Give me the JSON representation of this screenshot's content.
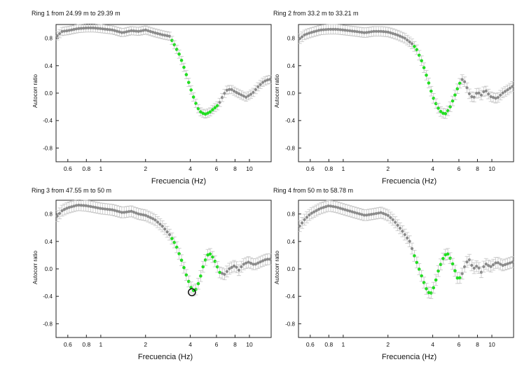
{
  "colors": {
    "highlight": "#22dd22",
    "gray_points": "#8a8a8a",
    "error_bars": "#c4c4c4",
    "frame": "#222222",
    "marker_ring": "#111111"
  },
  "chart_data": [
    {
      "type": "scatter",
      "title": "Ring 1 from 24.99 m to 29.39 m",
      "xlabel": "Frecuencia (Hz)",
      "ylabel": "Autocorr ratio",
      "xscale": "log",
      "xlim": [
        0.5,
        14
      ],
      "ylim": [
        -1.0,
        1.0
      ],
      "xtick_labels": [
        "0.6",
        "0.8",
        "1",
        "2",
        "4",
        "6",
        "8",
        "10"
      ],
      "xtick_values": [
        0.6,
        0.8,
        1,
        2,
        4,
        6,
        8,
        10
      ],
      "ytick_labels": [
        "0.8",
        "0.4",
        "0.0",
        "-0.4",
        "-0.8"
      ],
      "ytick_values": [
        0.8,
        0.4,
        0.0,
        -0.4,
        -0.8
      ],
      "grid": false,
      "highlight_range": [
        3.0,
        6.3
      ],
      "curve_points": [
        [
          0.5,
          0.82
        ],
        [
          0.55,
          0.9
        ],
        [
          0.6,
          0.91
        ],
        [
          0.7,
          0.94
        ],
        [
          0.8,
          0.95
        ],
        [
          0.9,
          0.95
        ],
        [
          1.0,
          0.94
        ],
        [
          1.2,
          0.92
        ],
        [
          1.4,
          0.88
        ],
        [
          1.6,
          0.91
        ],
        [
          1.8,
          0.9
        ],
        [
          2.0,
          0.92
        ],
        [
          2.3,
          0.88
        ],
        [
          2.6,
          0.85
        ],
        [
          2.9,
          0.83
        ],
        [
          3.1,
          0.72
        ],
        [
          3.4,
          0.55
        ],
        [
          3.7,
          0.32
        ],
        [
          4.0,
          0.08
        ],
        [
          4.3,
          -0.12
        ],
        [
          4.6,
          -0.26
        ],
        [
          5.0,
          -0.31
        ],
        [
          5.4,
          -0.28
        ],
        [
          5.8,
          -0.22
        ],
        [
          6.2,
          -0.17
        ],
        [
          6.6,
          -0.05
        ],
        [
          7.0,
          0.04
        ],
        [
          7.5,
          0.06
        ],
        [
          8.0,
          0.02
        ],
        [
          8.7,
          -0.02
        ],
        [
          9.5,
          -0.06
        ],
        [
          10.5,
          0.0
        ],
        [
          11.5,
          0.1
        ],
        [
          12.5,
          0.17
        ],
        [
          13.5,
          0.2
        ]
      ],
      "error": 0.06,
      "marker_circle": null
    },
    {
      "type": "scatter",
      "title": "Ring 2 from 33.2 m to 33.21 m",
      "xlabel": "Frecuencia (Hz)",
      "ylabel": "Autocorr ratio",
      "xscale": "log",
      "xlim": [
        0.5,
        14
      ],
      "ylim": [
        -1.0,
        1.0
      ],
      "xtick_labels": [
        "0.6",
        "0.8",
        "1",
        "2",
        "4",
        "6",
        "8",
        "10"
      ],
      "xtick_values": [
        0.6,
        0.8,
        1,
        2,
        4,
        6,
        8,
        10
      ],
      "ytick_labels": [
        "0.8",
        "0.4",
        "0.0",
        "-0.4",
        "-0.8"
      ],
      "ytick_values": [
        0.8,
        0.4,
        0.0,
        -0.4,
        -0.8
      ],
      "grid": false,
      "highlight_range": [
        3.0,
        6.2
      ],
      "curve_points": [
        [
          0.5,
          0.78
        ],
        [
          0.55,
          0.85
        ],
        [
          0.6,
          0.88
        ],
        [
          0.7,
          0.92
        ],
        [
          0.8,
          0.93
        ],
        [
          0.9,
          0.93
        ],
        [
          1.0,
          0.92
        ],
        [
          1.2,
          0.9
        ],
        [
          1.4,
          0.88
        ],
        [
          1.6,
          0.9
        ],
        [
          1.8,
          0.9
        ],
        [
          2.0,
          0.89
        ],
        [
          2.3,
          0.85
        ],
        [
          2.6,
          0.8
        ],
        [
          2.9,
          0.72
        ],
        [
          3.1,
          0.65
        ],
        [
          3.4,
          0.45
        ],
        [
          3.7,
          0.2
        ],
        [
          4.0,
          -0.05
        ],
        [
          4.3,
          -0.2
        ],
        [
          4.6,
          -0.29
        ],
        [
          4.9,
          -0.3
        ],
        [
          5.2,
          -0.22
        ],
        [
          5.6,
          -0.05
        ],
        [
          6.0,
          0.12
        ],
        [
          6.3,
          0.2
        ],
        [
          6.6,
          0.16
        ],
        [
          7.0,
          0.0
        ],
        [
          7.5,
          -0.08
        ],
        [
          8.0,
          0.02
        ],
        [
          8.5,
          -0.03
        ],
        [
          9.0,
          0.05
        ],
        [
          9.8,
          -0.05
        ],
        [
          10.8,
          -0.08
        ],
        [
          11.8,
          0.0
        ],
        [
          13.0,
          0.06
        ],
        [
          13.8,
          0.1
        ]
      ],
      "error": 0.07,
      "marker_circle": null
    },
    {
      "type": "scatter",
      "title": "Ring 3 from 47.55 m to 50 m",
      "xlabel": "Frecuencia (Hz)",
      "ylabel": "Autocorr ratio",
      "xscale": "log",
      "xlim": [
        0.5,
        14
      ],
      "ylim": [
        -1.0,
        1.0
      ],
      "xtick_labels": [
        "0.6",
        "0.8",
        "1",
        "2",
        "4",
        "6",
        "8",
        "10"
      ],
      "xtick_values": [
        0.6,
        0.8,
        1,
        2,
        4,
        6,
        8,
        10
      ],
      "ytick_labels": [
        "0.8",
        "0.4",
        "0.0",
        "-0.4",
        "-0.8"
      ],
      "ytick_values": [
        0.8,
        0.4,
        0.0,
        -0.4,
        -0.8
      ],
      "grid": false,
      "highlight_range": [
        3.0,
        6.5
      ],
      "curve_points": [
        [
          0.5,
          0.75
        ],
        [
          0.55,
          0.85
        ],
        [
          0.6,
          0.89
        ],
        [
          0.7,
          0.93
        ],
        [
          0.8,
          0.92
        ],
        [
          0.9,
          0.9
        ],
        [
          1.0,
          0.88
        ],
        [
          1.2,
          0.86
        ],
        [
          1.4,
          0.82
        ],
        [
          1.6,
          0.84
        ],
        [
          1.8,
          0.8
        ],
        [
          2.0,
          0.78
        ],
        [
          2.3,
          0.72
        ],
        [
          2.6,
          0.62
        ],
        [
          2.9,
          0.5
        ],
        [
          3.2,
          0.35
        ],
        [
          3.5,
          0.12
        ],
        [
          3.8,
          -0.12
        ],
        [
          4.1,
          -0.3
        ],
        [
          4.3,
          -0.33
        ],
        [
          4.6,
          -0.18
        ],
        [
          4.9,
          0.05
        ],
        [
          5.2,
          0.2
        ],
        [
          5.5,
          0.22
        ],
        [
          5.9,
          0.1
        ],
        [
          6.3,
          -0.05
        ],
        [
          6.8,
          -0.08
        ],
        [
          7.3,
          0.0
        ],
        [
          8.0,
          0.05
        ],
        [
          8.5,
          -0.02
        ],
        [
          9.0,
          0.06
        ],
        [
          9.8,
          0.1
        ],
        [
          10.8,
          0.06
        ],
        [
          11.8,
          0.1
        ],
        [
          13.0,
          0.14
        ],
        [
          13.8,
          0.14
        ]
      ],
      "error": 0.08,
      "marker_circle": {
        "x": 4.1,
        "y": -0.34
      }
    },
    {
      "type": "scatter",
      "title": "Ring 4 from 50 m to 58.78 m",
      "xlabel": "Frecuencia (Hz)",
      "ylabel": "Autocorr ratio",
      "xscale": "log",
      "xlim": [
        0.5,
        14
      ],
      "ylim": [
        -1.0,
        1.0
      ],
      "xtick_labels": [
        "0.6",
        "0.8",
        "1",
        "2",
        "4",
        "6",
        "8",
        "10"
      ],
      "xtick_values": [
        0.6,
        0.8,
        1,
        2,
        4,
        6,
        8,
        10
      ],
      "ytick_labels": [
        "0.8",
        "0.4",
        "0.0",
        "-0.4",
        "-0.8"
      ],
      "ytick_values": [
        0.8,
        0.4,
        0.0,
        -0.4,
        -0.8
      ],
      "grid": false,
      "highlight_range": [
        3.0,
        6.2
      ],
      "curve_points": [
        [
          0.5,
          0.6
        ],
        [
          0.55,
          0.72
        ],
        [
          0.6,
          0.8
        ],
        [
          0.7,
          0.88
        ],
        [
          0.8,
          0.92
        ],
        [
          0.9,
          0.9
        ],
        [
          1.0,
          0.87
        ],
        [
          1.2,
          0.82
        ],
        [
          1.4,
          0.78
        ],
        [
          1.6,
          0.8
        ],
        [
          1.8,
          0.82
        ],
        [
          2.0,
          0.78
        ],
        [
          2.2,
          0.7
        ],
        [
          2.5,
          0.55
        ],
        [
          2.8,
          0.4
        ],
        [
          3.0,
          0.2
        ],
        [
          3.3,
          -0.05
        ],
        [
          3.6,
          -0.28
        ],
        [
          3.85,
          -0.38
        ],
        [
          4.1,
          -0.25
        ],
        [
          4.4,
          0.0
        ],
        [
          4.8,
          0.2
        ],
        [
          5.1,
          0.22
        ],
        [
          5.5,
          0.05
        ],
        [
          5.9,
          -0.15
        ],
        [
          6.2,
          -0.12
        ],
        [
          6.6,
          0.05
        ],
        [
          7.0,
          0.15
        ],
        [
          7.5,
          0.0
        ],
        [
          8.0,
          0.05
        ],
        [
          8.5,
          -0.05
        ],
        [
          9.0,
          0.08
        ],
        [
          9.8,
          0.03
        ],
        [
          10.8,
          0.1
        ],
        [
          11.8,
          0.05
        ],
        [
          13.0,
          0.08
        ],
        [
          13.8,
          0.1
        ]
      ],
      "error": 0.08,
      "marker_circle": null
    }
  ]
}
